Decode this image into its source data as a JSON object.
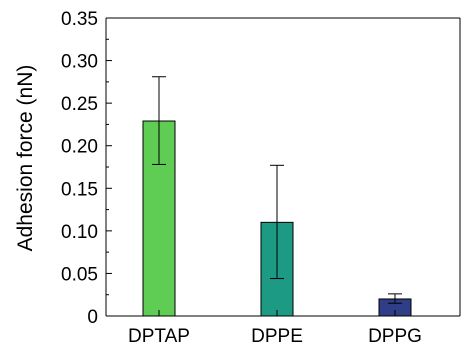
{
  "chart_data": {
    "type": "bar",
    "title": "",
    "xlabel": "",
    "ylabel": "Adhesion force (nN)",
    "ylim": [
      0,
      0.35
    ],
    "yticks": [
      "0",
      "0.05",
      "0.10",
      "0.15",
      "0.20",
      "0.25",
      "0.30",
      "0.35"
    ],
    "grid": false,
    "categories": [
      "DPTAP",
      "DPPE",
      "DPPG"
    ],
    "values": [
      0.229,
      0.11,
      0.02
    ],
    "error_low": [
      0.178,
      0.044,
      0.015
    ],
    "error_high": [
      0.281,
      0.177,
      0.026
    ],
    "colors": [
      "#5fcc54",
      "#1c9a83",
      "#2f3e86"
    ]
  }
}
